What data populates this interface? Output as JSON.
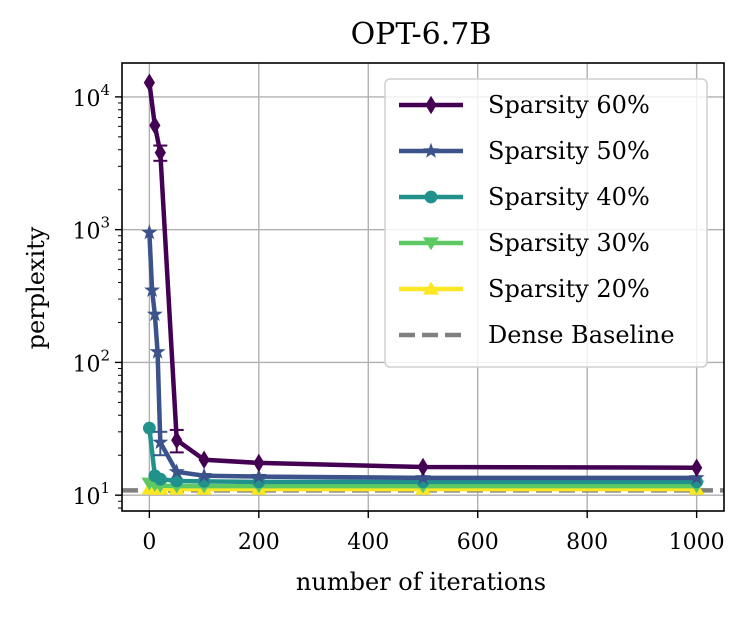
{
  "chart_data": {
    "type": "line",
    "title": "OPT-6.7B",
    "xlabel": "number of iterations",
    "ylabel": "perplexity",
    "xlim": [
      -50,
      1050
    ],
    "ylim": [
      7.6,
      18000
    ],
    "yscale": "log",
    "grid": true,
    "legend_position": "top-right",
    "x_ticks": [
      {
        "value": 0,
        "label": "0"
      },
      {
        "value": 200,
        "label": "200"
      },
      {
        "value": 400,
        "label": "400"
      },
      {
        "value": 600,
        "label": "600"
      },
      {
        "value": 800,
        "label": "800"
      },
      {
        "value": 1000,
        "label": "1000"
      }
    ],
    "y_ticks": [
      {
        "value": 10,
        "base": "10",
        "exp": "1"
      },
      {
        "value": 100,
        "base": "10",
        "exp": "2"
      },
      {
        "value": 1000,
        "base": "10",
        "exp": "3"
      },
      {
        "value": 10000,
        "base": "10",
        "exp": "4"
      }
    ],
    "series": [
      {
        "name": "Sparsity 60%",
        "color": "#440154",
        "marker": "diamond",
        "x": [
          0,
          10,
          20,
          50,
          100,
          200,
          500,
          1000
        ],
        "y": [
          12800,
          6100,
          3800,
          26,
          18.5,
          17.5,
          16.3,
          16.1
        ],
        "err": [
          0,
          0,
          500,
          5,
          0,
          0,
          0,
          0
        ]
      },
      {
        "name": "Sparsity 50%",
        "color": "#3b528b",
        "marker": "star",
        "x": [
          0,
          5,
          10,
          15,
          20,
          50,
          100,
          200,
          500,
          1000
        ],
        "y": [
          950,
          350,
          230,
          120,
          25,
          15,
          14,
          13.8,
          13.5,
          13.5
        ],
        "err": [
          0,
          0,
          0,
          0,
          5,
          0,
          0,
          0,
          0,
          0
        ]
      },
      {
        "name": "Sparsity 40%",
        "color": "#21918c",
        "marker": "circle",
        "x": [
          0,
          10,
          20,
          50,
          100,
          200,
          500,
          1000
        ],
        "y": [
          32,
          14,
          13.2,
          12.8,
          12.7,
          12.6,
          12.6,
          12.6
        ],
        "err": [
          0,
          0,
          0,
          0,
          0,
          0,
          0,
          0
        ]
      },
      {
        "name": "Sparsity 30%",
        "color": "#5ec962",
        "marker": "triangle-down",
        "x": [
          0,
          10,
          20,
          50,
          100,
          200,
          500,
          1000
        ],
        "y": [
          12.3,
          12,
          11.8,
          11.7,
          11.7,
          11.7,
          11.7,
          11.7
        ],
        "err": [
          0,
          0,
          0,
          0,
          0,
          0,
          0,
          0
        ]
      },
      {
        "name": "Sparsity 20%",
        "color": "#fde725",
        "marker": "triangle-up",
        "x": [
          0,
          10,
          20,
          50,
          100,
          200,
          500,
          1000
        ],
        "y": [
          11.2,
          11.1,
          11.1,
          11.1,
          11.1,
          11.1,
          11.1,
          11.1
        ],
        "err": [
          0,
          0,
          0,
          0,
          0,
          0,
          0,
          0
        ]
      }
    ],
    "baseline": {
      "name": "Dense Baseline",
      "color": "#808080",
      "style": "dashed",
      "y": 10.86
    }
  }
}
